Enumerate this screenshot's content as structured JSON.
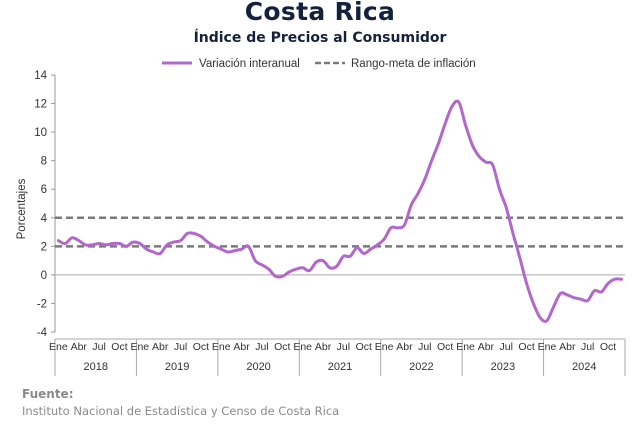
{
  "header": {
    "title": "Costa Rica",
    "subtitle": "Índice de Precios al Consumidor"
  },
  "footer": {
    "source_label": "Fuente:",
    "source_text": "Instituto Nacional de Estadística y Censo de Costa Rica"
  },
  "chart_data": {
    "type": "line",
    "title": "",
    "xlabel": "",
    "ylabel": "Porcentajes",
    "ylim": [
      -4,
      14
    ],
    "yticks": [
      -4,
      -2,
      0,
      2,
      4,
      6,
      8,
      10,
      12,
      14
    ],
    "grid": false,
    "legend_position": "top",
    "month_tick_labels": [
      "Ene",
      "Abr",
      "Jul",
      "Oct"
    ],
    "years": [
      "2018",
      "2019",
      "2020",
      "2021",
      "2022",
      "2023",
      "2024"
    ],
    "series": [
      {
        "name": "Variación interanual",
        "color": "#b366cc",
        "style": "solid",
        "x_start": "2018-01",
        "values": [
          2.4,
          2.2,
          2.6,
          2.4,
          2.1,
          2.1,
          2.2,
          2.1,
          2.2,
          2.2,
          2.0,
          2.3,
          2.2,
          1.8,
          1.6,
          1.5,
          2.1,
          2.3,
          2.4,
          2.9,
          2.9,
          2.7,
          2.3,
          2.0,
          1.8,
          1.6,
          1.7,
          1.8,
          2.0,
          1.0,
          0.7,
          0.4,
          -0.1,
          -0.1,
          0.2,
          0.4,
          0.5,
          0.3,
          0.9,
          1.0,
          0.5,
          0.6,
          1.3,
          1.3,
          1.9,
          1.5,
          1.8,
          2.1,
          2.5,
          3.3,
          3.3,
          3.5,
          4.9,
          5.7,
          6.7,
          8.0,
          9.2,
          10.6,
          11.8,
          12.1,
          10.5,
          9.1,
          8.3,
          7.9,
          7.7,
          6.0,
          4.7,
          2.9,
          1.2,
          -0.6,
          -2.0,
          -3.0,
          -3.2,
          -2.2,
          -1.3,
          -1.4,
          -1.6,
          -1.7,
          -1.8,
          -1.1,
          -1.2,
          -0.6,
          -0.3,
          -0.3
        ]
      },
      {
        "name": "Rango-meta de inflación",
        "color": "#7a7a7a",
        "style": "dashed",
        "lower": 2,
        "upper": 4
      }
    ]
  }
}
